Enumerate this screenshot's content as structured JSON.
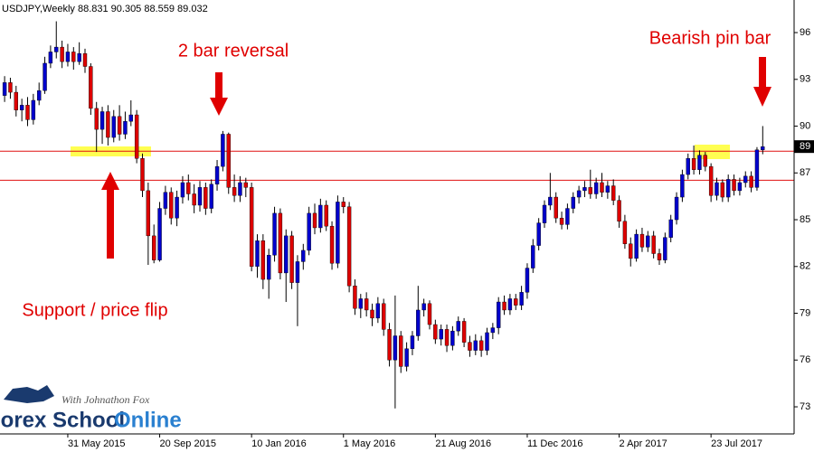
{
  "chart_data": {
    "type": "candlestick",
    "title": "USDJPY,Weekly 88.831 90.305 88.559 89.032",
    "bull_color": "#0000cc",
    "bear_color": "#dd0000",
    "level_color": "#e01010",
    "ylim": [
      71.22,
      98.12
    ],
    "yticks": [
      {
        "value": 96.1,
        "label": "96"
      },
      {
        "value": 93.2,
        "label": "93"
      },
      {
        "value": 90.3,
        "label": "90"
      },
      {
        "value": 87.4,
        "label": "87"
      },
      {
        "value": 84.5,
        "label": "85"
      },
      {
        "value": 81.6,
        "label": "82"
      },
      {
        "value": 78.7,
        "label": "79"
      },
      {
        "value": 75.8,
        "label": "76"
      },
      {
        "value": 72.9,
        "label": "73"
      }
    ],
    "current_price": {
      "value": 89.032,
      "label": "89"
    },
    "levels": [
      88.75,
      86.95
    ],
    "annotations": [
      "2 bar reversal",
      "Bearish pin bar",
      "Support / price flip"
    ],
    "logo": {
      "tagline": "With Johnathon Fox",
      "words": [
        "Forex School",
        "Online"
      ]
    },
    "categories": [
      null,
      null,
      null,
      null,
      null,
      null,
      null,
      null,
      null,
      null,
      null,
      "31 May 2015",
      null,
      null,
      null,
      null,
      null,
      null,
      null,
      null,
      null,
      null,
      null,
      null,
      null,
      null,
      null,
      "20 Sep 2015",
      null,
      null,
      null,
      null,
      null,
      null,
      null,
      null,
      null,
      null,
      null,
      null,
      null,
      null,
      null,
      "10 Jan 2016",
      null,
      null,
      null,
      null,
      null,
      null,
      null,
      null,
      null,
      null,
      null,
      null,
      null,
      null,
      null,
      "1 May 2016",
      null,
      null,
      null,
      null,
      null,
      null,
      null,
      null,
      null,
      null,
      null,
      null,
      null,
      null,
      null,
      "21 Aug 2016",
      null,
      null,
      null,
      null,
      null,
      null,
      null,
      null,
      null,
      null,
      null,
      null,
      null,
      null,
      null,
      "11 Dec 2016",
      null,
      null,
      null,
      null,
      null,
      null,
      null,
      null,
      null,
      null,
      null,
      null,
      null,
      null,
      null,
      "2 Apr 2017",
      null,
      null,
      null,
      null,
      null,
      null,
      null,
      null,
      null,
      null,
      null,
      null,
      null,
      null,
      null,
      "23 Jul 2017",
      null,
      null,
      null,
      null,
      null,
      null,
      null,
      null,
      null
    ],
    "candles": [
      [
        92.2,
        93.4,
        91.8,
        93.0
      ],
      [
        93.0,
        93.3,
        92.0,
        92.4
      ],
      [
        92.4,
        92.8,
        90.9,
        91.3
      ],
      [
        91.3,
        92.0,
        90.6,
        91.6
      ],
      [
        91.6,
        92.1,
        90.3,
        90.7
      ],
      [
        90.7,
        92.3,
        90.4,
        91.9
      ],
      [
        91.9,
        93.0,
        91.6,
        92.5
      ],
      [
        92.5,
        94.6,
        92.3,
        94.2
      ],
      [
        94.2,
        95.3,
        93.9,
        94.9
      ],
      [
        94.9,
        96.8,
        94.5,
        95.2
      ],
      [
        95.2,
        95.6,
        93.9,
        94.3
      ],
      [
        94.3,
        95.4,
        94.0,
        94.9
      ],
      [
        94.9,
        95.2,
        93.8,
        94.3
      ],
      [
        94.3,
        95.5,
        94.1,
        94.8
      ],
      [
        94.8,
        95.1,
        93.6,
        94.0
      ],
      [
        94.0,
        94.2,
        91.0,
        91.4
      ],
      [
        91.4,
        91.8,
        88.7,
        90.1
      ],
      [
        90.1,
        91.5,
        89.2,
        91.2
      ],
      [
        91.2,
        91.6,
        89.1,
        89.6
      ],
      [
        89.6,
        91.3,
        89.3,
        90.9
      ],
      [
        90.9,
        91.6,
        89.4,
        89.8
      ],
      [
        89.8,
        91.2,
        89.5,
        90.6
      ],
      [
        90.6,
        91.9,
        90.3,
        91.0
      ],
      [
        91.0,
        91.3,
        88.0,
        88.3
      ],
      [
        88.3,
        88.6,
        85.9,
        86.3
      ],
      [
        86.3,
        86.8,
        81.7,
        83.5
      ],
      [
        83.5,
        84.2,
        81.8,
        82.0
      ],
      [
        82.0,
        85.6,
        81.9,
        85.2
      ],
      [
        85.2,
        86.6,
        84.8,
        86.2
      ],
      [
        86.2,
        86.5,
        84.2,
        84.6
      ],
      [
        84.6,
        86.3,
        84.1,
        85.9
      ],
      [
        85.9,
        87.2,
        85.5,
        86.8
      ],
      [
        86.8,
        87.3,
        85.7,
        86.1
      ],
      [
        86.1,
        86.7,
        84.9,
        85.4
      ],
      [
        85.4,
        86.9,
        85.0,
        86.5
      ],
      [
        86.5,
        86.8,
        84.8,
        85.2
      ],
      [
        85.2,
        87.0,
        84.9,
        86.7
      ],
      [
        86.7,
        88.2,
        86.3,
        87.8
      ],
      [
        87.8,
        90.0,
        87.5,
        89.8
      ],
      [
        89.8,
        89.9,
        86.1,
        86.5
      ],
      [
        86.5,
        87.3,
        85.6,
        86.0
      ],
      [
        86.0,
        87.2,
        85.6,
        86.8
      ],
      [
        86.8,
        87.1,
        85.9,
        86.5
      ],
      [
        86.5,
        86.8,
        81.3,
        81.6
      ],
      [
        81.6,
        83.6,
        80.9,
        83.2
      ],
      [
        83.2,
        83.6,
        80.2,
        80.8
      ],
      [
        80.8,
        82.7,
        79.6,
        82.3
      ],
      [
        82.3,
        85.3,
        81.9,
        84.9
      ],
      [
        84.9,
        85.2,
        80.8,
        81.2
      ],
      [
        81.2,
        83.9,
        79.4,
        83.5
      ],
      [
        83.5,
        83.8,
        80.2,
        80.6
      ],
      [
        80.6,
        82.3,
        77.9,
        81.9
      ],
      [
        81.9,
        83.0,
        81.4,
        82.6
      ],
      [
        82.6,
        85.3,
        82.3,
        84.9
      ],
      [
        84.9,
        85.5,
        83.6,
        84.0
      ],
      [
        84.0,
        85.8,
        83.7,
        85.4
      ],
      [
        85.4,
        85.7,
        83.8,
        84.1
      ],
      [
        84.1,
        84.4,
        81.4,
        81.8
      ],
      [
        81.8,
        86.0,
        81.5,
        85.6
      ],
      [
        85.6,
        85.9,
        84.9,
        85.3
      ],
      [
        85.3,
        85.6,
        80.0,
        80.4
      ],
      [
        80.4,
        80.8,
        78.6,
        79.0
      ],
      [
        79.0,
        79.9,
        78.4,
        79.6
      ],
      [
        79.6,
        80.0,
        78.5,
        78.9
      ],
      [
        78.9,
        79.3,
        77.9,
        78.4
      ],
      [
        78.4,
        79.7,
        78.1,
        79.3
      ],
      [
        79.3,
        79.6,
        77.3,
        77.7
      ],
      [
        77.7,
        78.1,
        75.4,
        75.8
      ],
      [
        75.8,
        79.8,
        72.8,
        77.3
      ],
      [
        77.3,
        77.6,
        75.0,
        75.4
      ],
      [
        75.4,
        76.9,
        75.1,
        76.5
      ],
      [
        76.5,
        77.6,
        76.1,
        77.3
      ],
      [
        77.3,
        80.4,
        77.0,
        78.9
      ],
      [
        78.9,
        79.6,
        78.5,
        79.3
      ],
      [
        79.3,
        79.5,
        77.7,
        78.0
      ],
      [
        78.0,
        78.3,
        76.8,
        77.1
      ],
      [
        77.1,
        78.0,
        76.7,
        77.7
      ],
      [
        77.7,
        78.0,
        76.3,
        76.7
      ],
      [
        76.7,
        77.9,
        76.4,
        77.6
      ],
      [
        77.6,
        78.5,
        77.3,
        78.2
      ],
      [
        78.2,
        78.4,
        76.6,
        76.9
      ],
      [
        76.9,
        77.3,
        76.0,
        76.4
      ],
      [
        76.4,
        77.4,
        76.1,
        77.0
      ],
      [
        77.0,
        77.3,
        76.0,
        76.4
      ],
      [
        76.4,
        77.8,
        76.1,
        77.5
      ],
      [
        77.5,
        78.1,
        77.1,
        77.8
      ],
      [
        77.8,
        79.7,
        77.4,
        79.4
      ],
      [
        79.4,
        79.8,
        78.6,
        78.9
      ],
      [
        78.9,
        79.9,
        78.6,
        79.6
      ],
      [
        79.6,
        79.9,
        78.9,
        79.2
      ],
      [
        79.2,
        80.4,
        78.9,
        80.0
      ],
      [
        80.0,
        81.8,
        79.6,
        81.5
      ],
      [
        81.5,
        83.3,
        81.2,
        82.9
      ],
      [
        82.9,
        84.6,
        82.6,
        84.3
      ],
      [
        84.3,
        85.7,
        84.0,
        85.4
      ],
      [
        85.4,
        87.4,
        85.1,
        85.9
      ],
      [
        85.9,
        86.2,
        84.3,
        84.6
      ],
      [
        84.6,
        85.0,
        83.9,
        84.2
      ],
      [
        84.2,
        85.5,
        83.9,
        85.2
      ],
      [
        85.2,
        86.2,
        84.9,
        85.9
      ],
      [
        85.9,
        86.6,
        85.5,
        86.3
      ],
      [
        86.3,
        86.9,
        85.9,
        86.5
      ],
      [
        86.5,
        87.6,
        85.8,
        86.1
      ],
      [
        86.1,
        87.1,
        85.8,
        86.8
      ],
      [
        86.8,
        87.4,
        85.9,
        86.2
      ],
      [
        86.2,
        86.9,
        85.8,
        86.6
      ],
      [
        86.6,
        87.0,
        85.4,
        85.7
      ],
      [
        85.7,
        86.0,
        84.0,
        84.4
      ],
      [
        84.4,
        84.8,
        82.7,
        83.0
      ],
      [
        83.0,
        83.4,
        81.6,
        82.1
      ],
      [
        82.1,
        83.9,
        81.9,
        83.6
      ],
      [
        83.6,
        84.0,
        82.5,
        82.8
      ],
      [
        82.8,
        83.8,
        82.5,
        83.5
      ],
      [
        83.5,
        83.8,
        82.1,
        82.4
      ],
      [
        82.4,
        82.7,
        81.7,
        82.0
      ],
      [
        82.0,
        83.7,
        81.8,
        83.4
      ],
      [
        83.4,
        84.8,
        83.1,
        84.5
      ],
      [
        84.5,
        86.2,
        84.2,
        85.9
      ],
      [
        85.9,
        87.6,
        85.6,
        87.3
      ],
      [
        87.3,
        88.6,
        87.0,
        88.3
      ],
      [
        88.3,
        89.1,
        87.3,
        87.6
      ],
      [
        87.6,
        88.8,
        87.3,
        88.5
      ],
      [
        88.5,
        88.7,
        87.5,
        87.8
      ],
      [
        87.8,
        88.0,
        85.6,
        86.0
      ],
      [
        86.0,
        87.1,
        85.7,
        86.8
      ],
      [
        86.8,
        87.0,
        85.6,
        85.9
      ],
      [
        85.9,
        87.3,
        85.6,
        87.0
      ],
      [
        87.0,
        87.3,
        86.0,
        86.3
      ],
      [
        86.3,
        87.1,
        86.0,
        86.8
      ],
      [
        86.8,
        87.5,
        86.5,
        87.2
      ],
      [
        87.2,
        87.5,
        86.2,
        86.5
      ],
      [
        86.5,
        89.0,
        86.3,
        88.83
      ],
      [
        88.831,
        90.305,
        88.559,
        89.032
      ]
    ]
  }
}
